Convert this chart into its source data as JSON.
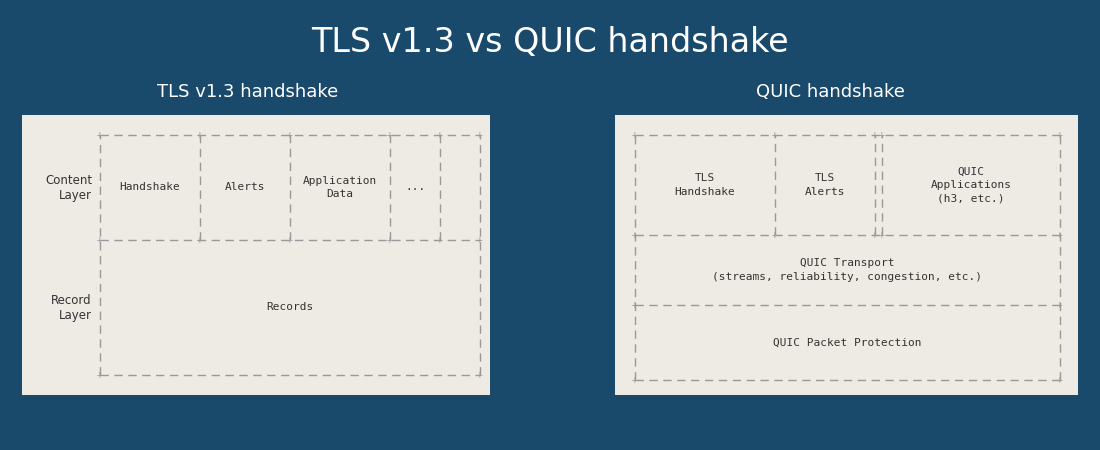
{
  "title": "TLS v1.3 vs QUIC handshake",
  "bg_color": "#1a4a6b",
  "box_bg": "#eeebe4",
  "text_color_dark": "#333333",
  "text_color_white": "#ffffff",
  "dashed_color": "#999999",
  "title_fontsize": 24,
  "subtitle_fontsize": 13,
  "label_fontsize": 8.5,
  "mono_fontsize": 8,
  "tls_subtitle": "TLS v1.3 handshake",
  "quic_subtitle": "QUIC handshake",
  "tls_content_layer_label": "Content\nLayer",
  "tls_record_layer_label": "Record\nLayer",
  "tls_content_cells": [
    "Handshake",
    "Alerts",
    "Application\nData",
    "..."
  ],
  "tls_record_text": "Records",
  "quic_top_cells": [
    "TLS\nHandshake",
    "TLS\nAlerts",
    "QUIC\nApplications\n(h3, etc.)"
  ],
  "quic_transport_text": "QUIC Transport\n(streams, reliability, congestion, etc.)",
  "quic_packet_text": "QUIC Packet Protection"
}
